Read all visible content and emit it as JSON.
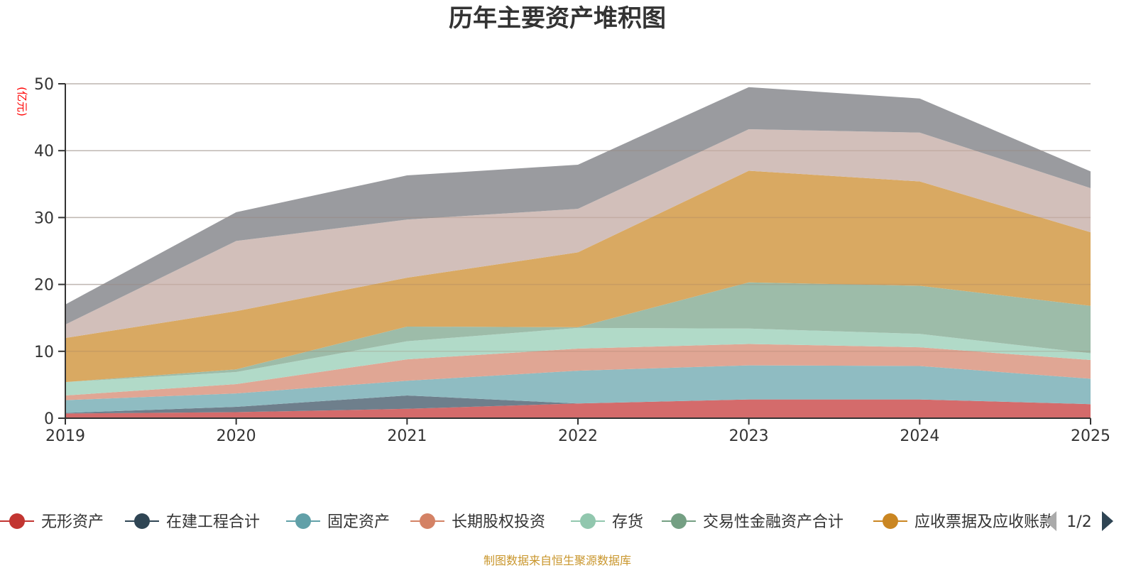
{
  "chart_data": {
    "type": "area",
    "stacked": true,
    "title": "历年主要资产堆积图",
    "ylabel": "(亿元)",
    "xlabel": "",
    "x": [
      "2019",
      "2020",
      "2021",
      "2022",
      "2023",
      "2024",
      "2025"
    ],
    "ylim": [
      0,
      50
    ],
    "yticks": [
      0,
      10,
      20,
      30,
      40,
      50
    ],
    "grid": true,
    "legend_position": "bottom",
    "series": [
      {
        "name": "无形资产",
        "color": "#c23531",
        "fill": "#d46b6b",
        "values": [
          0.7,
          0.9,
          1.4,
          2.2,
          2.8,
          2.8,
          2.1
        ]
      },
      {
        "name": "在建工程合计",
        "color": "#2f4554",
        "fill": "#6e7f8c",
        "values": [
          0.1,
          0.8,
          2.0,
          0.0,
          0.0,
          0.0,
          0.0
        ]
      },
      {
        "name": "固定资产",
        "color": "#61a0a8",
        "fill": "#8fbcc2",
        "values": [
          1.9,
          2.0,
          2.2,
          4.9,
          5.1,
          5.0,
          3.8
        ]
      },
      {
        "name": "长期股权投资",
        "color": "#d48265",
        "fill": "#e0a694",
        "values": [
          0.7,
          1.4,
          3.2,
          3.3,
          3.2,
          2.8,
          2.8
        ]
      },
      {
        "name": "存货",
        "color": "#91c7ae",
        "fill": "#b1dac8",
        "values": [
          2.0,
          1.8,
          2.7,
          3.1,
          2.3,
          2.0,
          1.0
        ]
      },
      {
        "name": "交易性金融资产合计",
        "color": "#749f83",
        "fill": "#9dbca9",
        "values": [
          0.0,
          0.4,
          2.2,
          0.1,
          6.9,
          7.2,
          7.1
        ]
      },
      {
        "name": "应收票据及应收账款",
        "color": "#ca8622",
        "fill": "#d9a962",
        "values": [
          6.6,
          8.7,
          7.3,
          11.2,
          16.7,
          15.6,
          11.0
        ]
      },
      {
        "name": "",
        "color": "#bda29a",
        "fill": "#d2bfba",
        "values": [
          2.0,
          10.5,
          8.7,
          6.5,
          6.2,
          7.3,
          6.6
        ]
      },
      {
        "name": "",
        "color": "#6e7074",
        "fill": "#9a9b9f",
        "values": [
          3.0,
          4.3,
          6.6,
          6.6,
          6.3,
          5.1,
          2.5
        ]
      }
    ]
  },
  "legend": {
    "page_indicator": "1/2",
    "visible_count": 7
  },
  "source_note": "制图数据来自恒生聚源数据库"
}
